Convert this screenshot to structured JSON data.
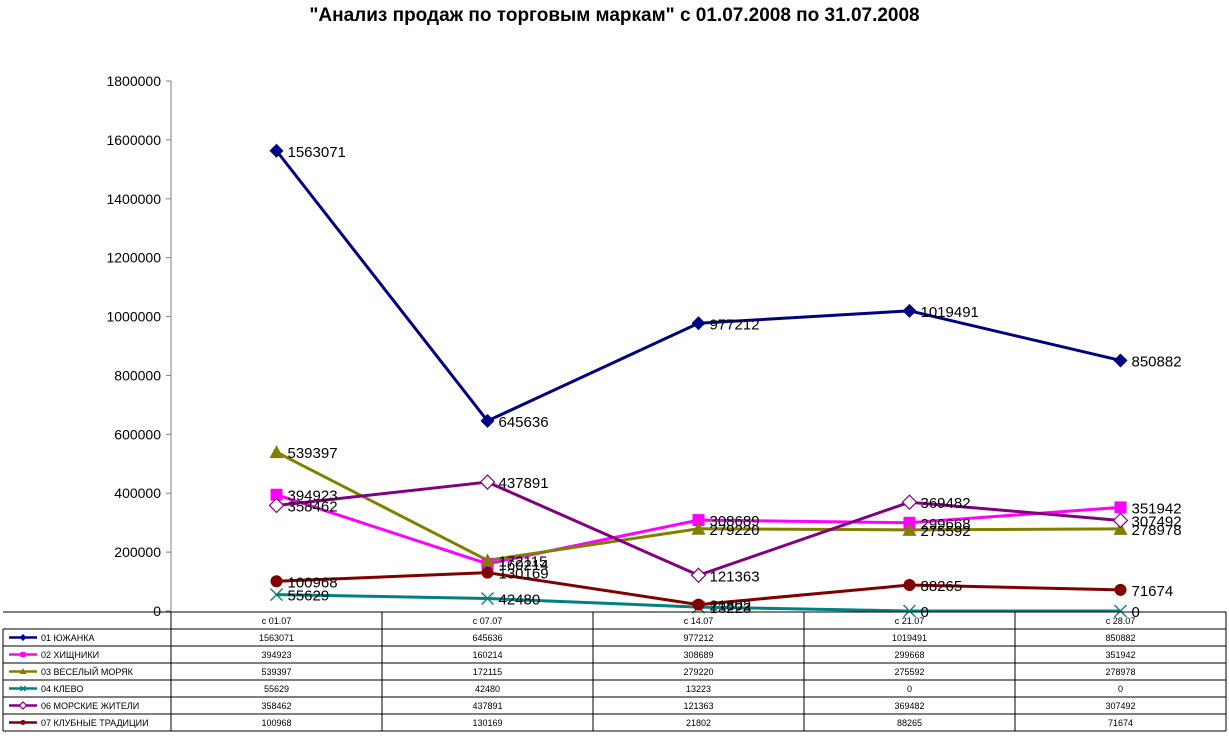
{
  "chart_data": {
    "type": "line",
    "title": "\"Анализ продаж по торговым маркам\" с 01.07.2008 по 31.07.2008",
    "categories": [
      "с 01.07",
      "с 07.07",
      "с 14.07",
      "с 21.07",
      "с 28.07"
    ],
    "ylim": [
      0,
      1800000
    ],
    "yticks": [
      0,
      200000,
      400000,
      600000,
      800000,
      1000000,
      1200000,
      1400000,
      1600000,
      1800000
    ],
    "grid": false,
    "legend": "data-table-below",
    "series": [
      {
        "name": "01 ЮЖАНКА",
        "color": "#000080",
        "marker": "diamond",
        "values": [
          1563071,
          645636,
          977212,
          1019491,
          850882
        ]
      },
      {
        "name": "02 ХИЩНИКИ",
        "color": "#ff00ff",
        "marker": "square",
        "values": [
          394923,
          160214,
          308689,
          299668,
          351942
        ]
      },
      {
        "name": "03 ВЕСЕЛЫЙ МОРЯК",
        "color": "#808000",
        "marker": "triangle",
        "values": [
          539397,
          172115,
          279220,
          275592,
          278978
        ]
      },
      {
        "name": "04 КЛЕВО",
        "color": "#008080",
        "marker": "x",
        "values": [
          55629,
          42480,
          13223,
          0,
          0
        ]
      },
      {
        "name": "06 МОРСКИЕ ЖИТЕЛИ",
        "color": "#800080",
        "marker": "diamond-open",
        "values": [
          358462,
          437891,
          121363,
          369482,
          307492
        ]
      },
      {
        "name": "07 КЛУБНЫЕ ТРАДИЦИИ",
        "color": "#800000",
        "marker": "circle",
        "values": [
          100968,
          130169,
          21802,
          88265,
          71674
        ]
      }
    ]
  }
}
